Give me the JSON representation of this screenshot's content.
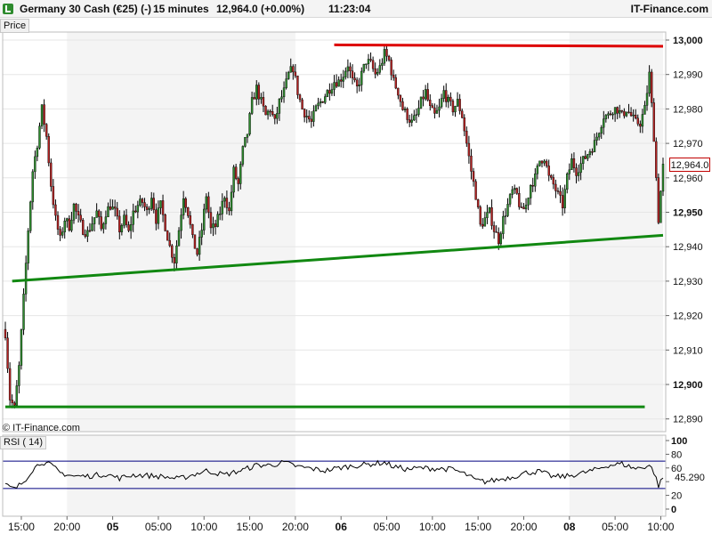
{
  "header": {
    "instrument": "Germany 30 Cash (€25) (-)",
    "interval": "15 minutes",
    "quote": "12,964.0 (+0.00%)",
    "time": "11:23:04",
    "brand": "IT-Finance.com"
  },
  "price_tag": "Price",
  "rsi_tag": "RSI ( 14)",
  "copyright": "© IT-Finance.com",
  "last_price_label": "12,964.0",
  "rsi_value_label": "45.290",
  "colors": {
    "up_candle": "#2e8b2e",
    "down_candle": "#b22222",
    "resistance": "#dd0000",
    "support": "#118811",
    "rsi_line": "#000000",
    "rsi_bands": "#000080",
    "session_shade": "#f4f4f4"
  },
  "chart_data": [
    {
      "type": "candlestick",
      "title": "Germany 30 Cash (€25) (-)",
      "interval": "15 minutes",
      "ylim": [
        12885,
        13007
      ],
      "y_ticks": [
        "13,000",
        "12,990",
        "12,980",
        "12,970",
        "12,960",
        "12,950",
        "12,940",
        "12,930",
        "12,920",
        "12,910",
        "12,900",
        "12,890"
      ],
      "y_ticks_bold": [
        "13,000",
        "12,950",
        "12,900"
      ],
      "y_tick_values": [
        13000,
        12990,
        12980,
        12970,
        12960,
        12950,
        12940,
        12930,
        12920,
        12910,
        12900,
        12890
      ],
      "x_ticks": [
        {
          "label": "15:00",
          "bold": false,
          "idx": 7
        },
        {
          "label": "20:00",
          "bold": false,
          "idx": 27
        },
        {
          "label": "05",
          "bold": true,
          "idx": 47
        },
        {
          "label": "05:00",
          "bold": false,
          "idx": 67
        },
        {
          "label": "10:00",
          "bold": false,
          "idx": 87
        },
        {
          "label": "15:00",
          "bold": false,
          "idx": 107
        },
        {
          "label": "20:00",
          "bold": false,
          "idx": 127
        },
        {
          "label": "06",
          "bold": true,
          "idx": 147
        },
        {
          "label": "05:00",
          "bold": false,
          "idx": 167
        },
        {
          "label": "10:00",
          "bold": false,
          "idx": 187
        },
        {
          "label": "15:00",
          "bold": false,
          "idx": 207
        },
        {
          "label": "20:00",
          "bold": false,
          "idx": 227
        },
        {
          "label": "08",
          "bold": true,
          "idx": 247
        },
        {
          "label": "05:00",
          "bold": false,
          "idx": 267
        },
        {
          "label": "10:00",
          "bold": false,
          "idx": 287
        }
      ],
      "shaded_sessions": [
        [
          27,
          127
        ],
        [
          247,
          288
        ]
      ],
      "last_price": 12964.0,
      "close_anchors": [
        [
          0,
          12915
        ],
        [
          2,
          12896
        ],
        [
          4,
          12893
        ],
        [
          6,
          12905
        ],
        [
          8,
          12925
        ],
        [
          10,
          12945
        ],
        [
          12,
          12962
        ],
        [
          14,
          12970
        ],
        [
          16,
          12980
        ],
        [
          18,
          12972
        ],
        [
          20,
          12958
        ],
        [
          22,
          12948
        ],
        [
          24,
          12942
        ],
        [
          26,
          12948
        ],
        [
          28,
          12946
        ],
        [
          30,
          12952
        ],
        [
          32,
          12948
        ],
        [
          34,
          12945
        ],
        [
          36,
          12944
        ],
        [
          38,
          12947
        ],
        [
          40,
          12950
        ],
        [
          42,
          12945
        ],
        [
          44,
          12950
        ],
        [
          46,
          12952
        ],
        [
          48,
          12950
        ],
        [
          50,
          12945
        ],
        [
          52,
          12948
        ],
        [
          54,
          12944
        ],
        [
          56,
          12950
        ],
        [
          58,
          12952
        ],
        [
          60,
          12953
        ],
        [
          62,
          12950
        ],
        [
          64,
          12955
        ],
        [
          66,
          12948
        ],
        [
          68,
          12952
        ],
        [
          70,
          12946
        ],
        [
          72,
          12940
        ],
        [
          74,
          12936
        ],
        [
          76,
          12945
        ],
        [
          78,
          12955
        ],
        [
          80,
          12950
        ],
        [
          82,
          12942
        ],
        [
          84,
          12938
        ],
        [
          86,
          12945
        ],
        [
          88,
          12955
        ],
        [
          90,
          12945
        ],
        [
          92,
          12946
        ],
        [
          94,
          12950
        ],
        [
          96,
          12955
        ],
        [
          98,
          12950
        ],
        [
          100,
          12962
        ],
        [
          102,
          12958
        ],
        [
          104,
          12968
        ],
        [
          106,
          12973
        ],
        [
          108,
          12982
        ],
        [
          110,
          12986
        ],
        [
          112,
          12982
        ],
        [
          114,
          12978
        ],
        [
          116,
          12980
        ],
        [
          118,
          12976
        ],
        [
          120,
          12982
        ],
        [
          122,
          12985
        ],
        [
          124,
          12990
        ],
        [
          126,
          12992
        ],
        [
          128,
          12985
        ],
        [
          130,
          12980
        ],
        [
          132,
          12978
        ],
        [
          134,
          12976
        ],
        [
          136,
          12980
        ],
        [
          138,
          12982
        ],
        [
          140,
          12984
        ],
        [
          142,
          12986
        ],
        [
          144,
          12988
        ],
        [
          146,
          12988
        ],
        [
          148,
          12990
        ],
        [
          150,
          12993
        ],
        [
          152,
          12988
        ],
        [
          154,
          12986
        ],
        [
          156,
          12990
        ],
        [
          158,
          12994
        ],
        [
          160,
          12993
        ],
        [
          162,
          12990
        ],
        [
          164,
          12992
        ],
        [
          166,
          12996
        ],
        [
          168,
          12994
        ],
        [
          170,
          12988
        ],
        [
          172,
          12985
        ],
        [
          174,
          12980
        ],
        [
          176,
          12978
        ],
        [
          178,
          12976
        ],
        [
          180,
          12978
        ],
        [
          182,
          12982
        ],
        [
          184,
          12985
        ],
        [
          186,
          12980
        ],
        [
          188,
          12978
        ],
        [
          190,
          12980
        ],
        [
          192,
          12985
        ],
        [
          194,
          12982
        ],
        [
          196,
          12980
        ],
        [
          198,
          12982
        ],
        [
          200,
          12978
        ],
        [
          202,
          12970
        ],
        [
          204,
          12962
        ],
        [
          206,
          12955
        ],
        [
          208,
          12946
        ],
        [
          210,
          12948
        ],
        [
          212,
          12950
        ],
        [
          214,
          12945
        ],
        [
          216,
          12942
        ],
        [
          218,
          12948
        ],
        [
          220,
          12952
        ],
        [
          222,
          12956
        ],
        [
          224,
          12955
        ],
        [
          226,
          12950
        ],
        [
          228,
          12952
        ],
        [
          230,
          12958
        ],
        [
          232,
          12960
        ],
        [
          234,
          12965
        ],
        [
          236,
          12966
        ],
        [
          238,
          12960
        ],
        [
          240,
          12958
        ],
        [
          242,
          12955
        ],
        [
          244,
          12952
        ],
        [
          246,
          12960
        ],
        [
          248,
          12965
        ],
        [
          250,
          12962
        ],
        [
          252,
          12964
        ],
        [
          254,
          12966
        ],
        [
          256,
          12968
        ],
        [
          258,
          12970
        ],
        [
          260,
          12974
        ],
        [
          262,
          12978
        ],
        [
          264,
          12978
        ],
        [
          266,
          12980
        ],
        [
          268,
          12980
        ],
        [
          270,
          12978
        ],
        [
          272,
          12980
        ],
        [
          274,
          12978
        ],
        [
          276,
          12976
        ],
        [
          278,
          12976
        ],
        [
          280,
          12980
        ],
        [
          282,
          12990
        ],
        [
          284,
          12972
        ],
        [
          286,
          12948
        ],
        [
          288,
          12964
        ]
      ],
      "trendlines": [
        {
          "name": "resistance",
          "color": "#dd0000",
          "points": [
            [
              144,
              12998.6
            ],
            [
              288,
              12998.2
            ]
          ]
        },
        {
          "name": "rising support",
          "color": "#118811",
          "points": [
            [
              3,
              12930
            ],
            [
              288,
              12943.3
            ]
          ]
        },
        {
          "name": "horizontal support",
          "color": "#118811",
          "points": [
            [
              0,
              12893.5
            ],
            [
              280,
              12893.5
            ]
          ]
        }
      ]
    },
    {
      "type": "line",
      "title": "RSI ( 14)",
      "ylim": [
        0,
        100
      ],
      "y_ticks": [
        "100",
        "80",
        "60",
        "40",
        "20",
        "0"
      ],
      "y_ticks_bold": [
        "100",
        "0"
      ],
      "y_tick_values": [
        100,
        80,
        60,
        40,
        20,
        0
      ],
      "bands": [
        70,
        30
      ],
      "last_value": 45.29,
      "rsi_anchors": [
        [
          0,
          35
        ],
        [
          4,
          29
        ],
        [
          8,
          40
        ],
        [
          12,
          58
        ],
        [
          16,
          69
        ],
        [
          20,
          64
        ],
        [
          24,
          53
        ],
        [
          30,
          48
        ],
        [
          36,
          48
        ],
        [
          44,
          51
        ],
        [
          50,
          45
        ],
        [
          56,
          50
        ],
        [
          62,
          49
        ],
        [
          70,
          47
        ],
        [
          76,
          44
        ],
        [
          82,
          50
        ],
        [
          88,
          56
        ],
        [
          96,
          50
        ],
        [
          104,
          57
        ],
        [
          110,
          64
        ],
        [
          116,
          64
        ],
        [
          122,
          68
        ],
        [
          128,
          62
        ],
        [
          134,
          59
        ],
        [
          140,
          56
        ],
        [
          146,
          60
        ],
        [
          152,
          63
        ],
        [
          158,
          65
        ],
        [
          166,
          68
        ],
        [
          170,
          62
        ],
        [
          176,
          58
        ],
        [
          182,
          60
        ],
        [
          190,
          59
        ],
        [
          196,
          58
        ],
        [
          202,
          50
        ],
        [
          206,
          42
        ],
        [
          210,
          40
        ],
        [
          216,
          43
        ],
        [
          222,
          47
        ],
        [
          228,
          53
        ],
        [
          234,
          55
        ],
        [
          240,
          47
        ],
        [
          246,
          48
        ],
        [
          252,
          52
        ],
        [
          258,
          57
        ],
        [
          264,
          64
        ],
        [
          270,
          66
        ],
        [
          276,
          59
        ],
        [
          280,
          62
        ],
        [
          282,
          64
        ],
        [
          284,
          54
        ],
        [
          286,
          34
        ],
        [
          288,
          45.29
        ]
      ]
    }
  ]
}
